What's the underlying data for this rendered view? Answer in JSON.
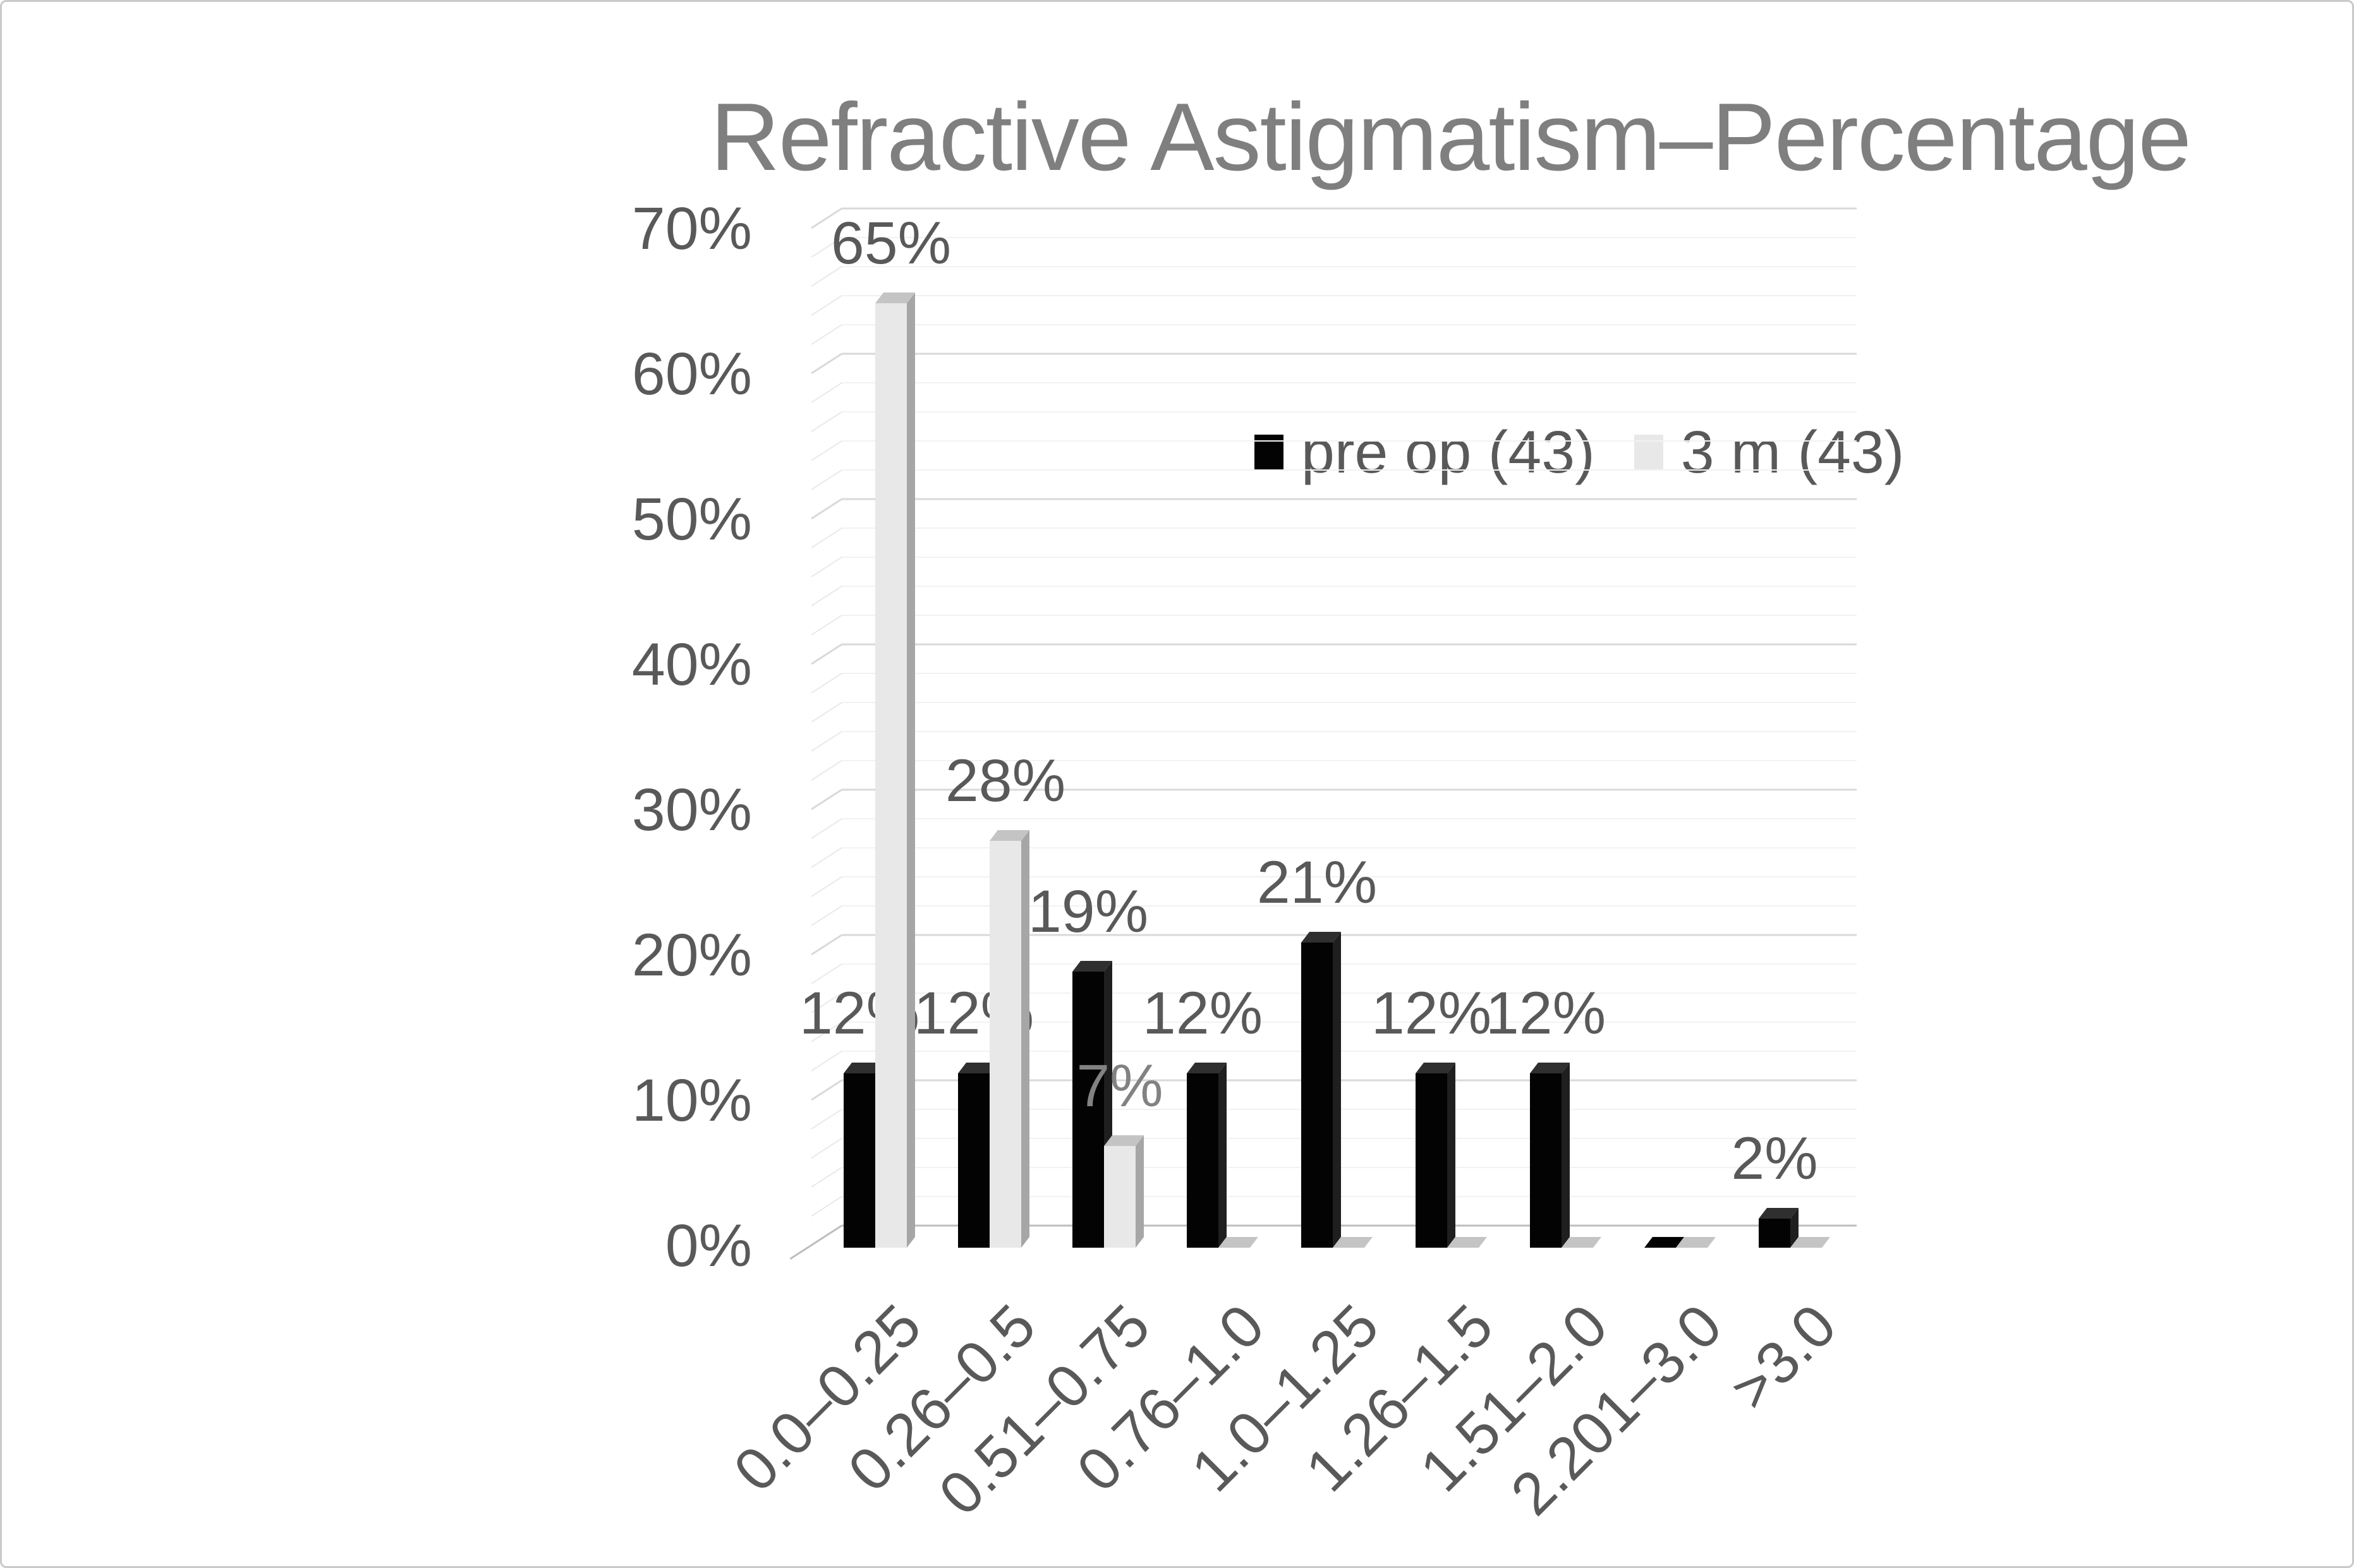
{
  "frame": {
    "border_color": "#c9c9c9",
    "background": "#ffffff"
  },
  "chart_data": {
    "type": "bar",
    "style": "3d-clustered-column",
    "title": "Refractive Astigmatism–Percentage",
    "title_color": "#7f7f7f",
    "categories": [
      "0.0–0.25",
      "0.26–0.5",
      "0.51–0.75",
      "0.76–1.0",
      "1.0–1.25",
      "1.26–1.5",
      "1.51–2.0",
      "2.201–3.0",
      ">3.0"
    ],
    "series": [
      {
        "name": "pre op (43)",
        "values": [
          12,
          12,
          19,
          12,
          21,
          12,
          12,
          0,
          2
        ],
        "labels": [
          "12%",
          "12%",
          "19%",
          "12%",
          "21%",
          "12%",
          "12%",
          "",
          "2%"
        ],
        "color": "#030303",
        "side_color": "#1f1f1f",
        "top_color": "#2f2f2f",
        "label_color": "#595959"
      },
      {
        "name": "3 m (43)",
        "values": [
          65,
          28,
          7,
          0,
          0,
          0,
          0,
          0,
          0
        ],
        "labels": [
          "65%",
          "28%",
          "7%",
          "",
          "",
          "",
          "",
          "",
          ""
        ],
        "color": "#e8e8e8",
        "side_color": "#a6a6a6",
        "top_color": "#c4c4c4",
        "label_color": "#595959",
        "label_colors": {
          "2": "#828282"
        }
      }
    ],
    "ylabel_ticks": [
      "0%",
      "10%",
      "20%",
      "30%",
      "40%",
      "50%",
      "60%",
      "70%"
    ],
    "ylim": [
      0,
      70
    ],
    "y_major_step": 10,
    "y_minor_step": 2,
    "grid": true,
    "legend_position": "inside-top-center",
    "axis_label_color": "#595959",
    "gridline_color": "#d9d9d9",
    "zero_line_color": "#bdbdbd",
    "minor_gridline_color": "#f2f2f2",
    "minor_diag_color": "#eaeaea"
  }
}
